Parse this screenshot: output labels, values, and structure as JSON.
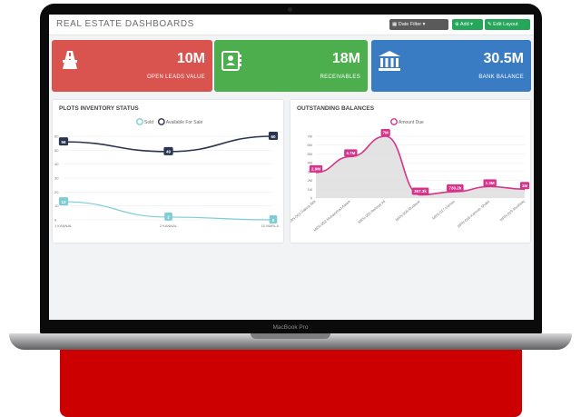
{
  "device": {
    "brand": "MacBook Pro"
  },
  "app": {
    "title": "REAL ESTATE DASHBOARDS",
    "buttons": {
      "date_filter": "Date Filter",
      "add": "Add",
      "edit_layout": "Edit Layout"
    }
  },
  "cards": [
    {
      "value": "10M",
      "label": "OPEN LEADS VALUE",
      "icon": "road-icon",
      "color": "#d9534f"
    },
    {
      "value": "18M",
      "label": "RECEIVABLES",
      "icon": "contact-book-icon",
      "color": "#4cae4c"
    },
    {
      "value": "30.5M",
      "label": "BANK BALANCE",
      "icon": "bank-icon",
      "color": "#3a7cc4"
    }
  ],
  "chart_data": [
    {
      "type": "line",
      "title": "PLOTS INVENTORY STATUS",
      "categories": [
        "1 KANNAL",
        "2 KANNAL",
        "10 MARLA"
      ],
      "ylim": [
        0,
        60
      ],
      "yticks": [
        0,
        10,
        20,
        30,
        40,
        50,
        60
      ],
      "series": [
        {
          "name": "Sold",
          "values": [
            13,
            2,
            0
          ],
          "color": "#7ecdd4"
        },
        {
          "name": "Available For Sale",
          "values": [
            56,
            49,
            60
          ],
          "color": "#2c3550"
        }
      ],
      "legend": "top-center",
      "grid": true
    },
    {
      "type": "area",
      "title": "OUTSTANDING BALANCES",
      "categories": [
        "MRN-001-Sakina Bibi",
        "MRN-002-Muhammad Aslam",
        "MRN-005-Rehmat Ali",
        "MRN-006-Mudasar",
        "MRN-017-Usman",
        "MRN-018-Kamran Shakir",
        "MRN-019-Mushtaq"
      ],
      "labels": [
        "2.9M",
        "4.7M",
        "7M",
        "357.3k",
        "730.2k",
        "1.3M",
        "1M"
      ],
      "values": [
        2.9,
        4.7,
        7,
        0.3573,
        0.7302,
        1.3,
        1
      ],
      "ylim": [
        0,
        7
      ],
      "yticks": [
        "0",
        "1M",
        "2M",
        "3M",
        "4M",
        "5M",
        "6M",
        "7M"
      ],
      "series": [
        {
          "name": "Amount Due",
          "color": "#d6338a"
        }
      ],
      "legend": "top-center",
      "grid": true
    }
  ]
}
